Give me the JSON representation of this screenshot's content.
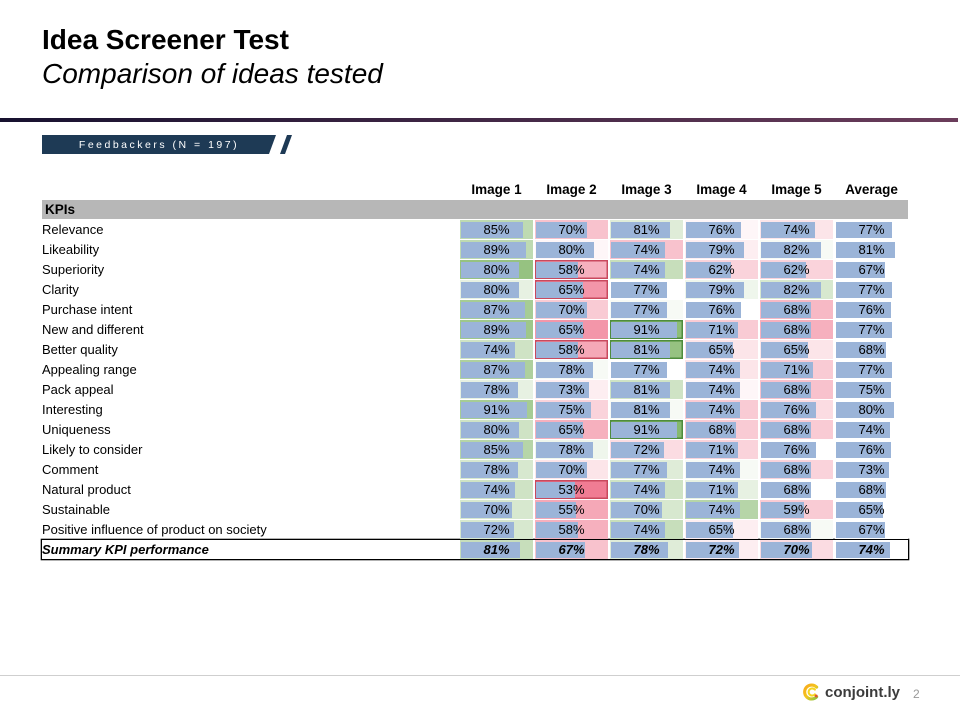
{
  "header": {
    "title": "Idea Screener Test",
    "subtitle": "Comparison of ideas tested"
  },
  "badge": {
    "label": "Feedbackers (N = 197)"
  },
  "chart_data": {
    "type": "table",
    "title": "KPIs",
    "value_format": "percent",
    "visual": "blue data bars proportional to value over red-white-green heatmap of deviation from row average; red/green boxes mark significantly lower/higher cells",
    "columns": [
      "Image 1",
      "Image 2",
      "Image 3",
      "Image 4",
      "Image 5",
      "Average"
    ],
    "rows": [
      {
        "label": "Relevance",
        "values": [
          85,
          70,
          81,
          76,
          74,
          77
        ]
      },
      {
        "label": "Likeability",
        "values": [
          89,
          80,
          74,
          79,
          82,
          81
        ]
      },
      {
        "label": "Superiority",
        "values": [
          80,
          58,
          74,
          62,
          62,
          67
        ],
        "lo": 1
      },
      {
        "label": "Clarity",
        "values": [
          80,
          65,
          77,
          79,
          82,
          77
        ],
        "lo": 1
      },
      {
        "label": "Purchase intent",
        "values": [
          87,
          70,
          77,
          76,
          68,
          76
        ]
      },
      {
        "label": "New and different",
        "values": [
          89,
          65,
          91,
          71,
          68,
          77
        ],
        "hi": 2
      },
      {
        "label": "Better quality",
        "values": [
          74,
          58,
          81,
          65,
          65,
          68
        ],
        "lo": 1,
        "hi": 2
      },
      {
        "label": "Appealing range",
        "values": [
          87,
          78,
          77,
          74,
          71,
          77
        ]
      },
      {
        "label": "Pack appeal",
        "values": [
          78,
          73,
          81,
          74,
          68,
          75
        ]
      },
      {
        "label": "Interesting",
        "values": [
          91,
          75,
          81,
          74,
          76,
          80
        ]
      },
      {
        "label": "Uniqueness",
        "values": [
          80,
          65,
          91,
          68,
          68,
          74
        ],
        "hi": 2
      },
      {
        "label": "Likely to consider",
        "values": [
          85,
          78,
          72,
          71,
          76,
          76
        ]
      },
      {
        "label": "Comment",
        "values": [
          78,
          70,
          77,
          74,
          68,
          73
        ]
      },
      {
        "label": "Natural product",
        "values": [
          74,
          53,
          74,
          71,
          68,
          68
        ],
        "lo": 1
      },
      {
        "label": "Sustainable",
        "values": [
          70,
          55,
          70,
          74,
          59,
          65
        ]
      },
      {
        "label": "Positive influence of product on society",
        "values": [
          72,
          58,
          74,
          65,
          68,
          67
        ]
      },
      {
        "label": "Summary KPI performance",
        "values": [
          81,
          67,
          78,
          72,
          70,
          74
        ],
        "summary": true
      }
    ]
  },
  "footer": {
    "brand": "conjoint.ly",
    "page": "2"
  },
  "colors": {
    "bar": "#9BB4D8",
    "heat_high": "#86B96E",
    "heat_low": "#F07C93",
    "hi_border": "#4E8C3C",
    "lo_border": "#C9495E",
    "header_gray": "#B7B7B7",
    "badge_bg": "#1E3A55",
    "rule_from": "#17112F",
    "rule_to": "#6B3D5B"
  }
}
